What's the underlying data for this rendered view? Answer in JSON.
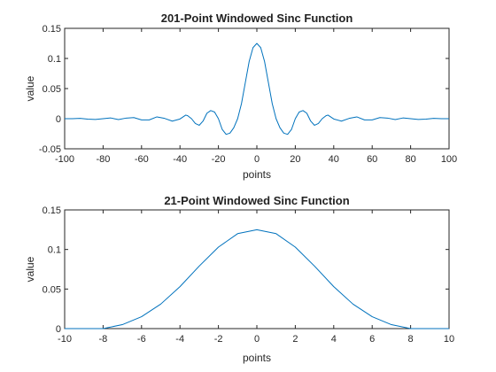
{
  "chart_data": [
    {
      "type": "line",
      "title": "201-Point Windowed Sinc Function",
      "xlabel": "points",
      "ylabel": "value",
      "xlim": [
        -100,
        100
      ],
      "ylim": [
        -0.05,
        0.15
      ],
      "xticks": [
        -100,
        -80,
        -60,
        -40,
        -20,
        0,
        20,
        40,
        60,
        80,
        100
      ],
      "yticks": [
        -0.05,
        0,
        0.05,
        0.1,
        0.15
      ],
      "xtick_labels": [
        "-100",
        "-80",
        "-60",
        "-40",
        "-20",
        "0",
        "20",
        "40",
        "60",
        "80",
        "100"
      ],
      "ytick_labels": [
        "-0.05",
        "0",
        "0.05",
        "0.1",
        "0.15"
      ],
      "grid": false,
      "line_color": "#0072BD",
      "series": [
        {
          "x": [
            -100,
            -96,
            -92,
            -88,
            -84,
            -80,
            -76,
            -72,
            -68,
            -64,
            -60,
            -56,
            -52,
            -48,
            -44,
            -40,
            -37,
            -36,
            -34,
            -32,
            -30,
            -28,
            -26,
            -24,
            -22,
            -20,
            -18,
            -16,
            -14,
            -12,
            -10,
            -8,
            -6,
            -4,
            -2,
            0,
            2,
            4,
            6,
            8,
            10,
            12,
            14,
            16,
            18,
            20,
            22,
            24,
            26,
            28,
            30,
            32,
            34,
            36,
            37,
            40,
            44,
            48,
            52,
            56,
            60,
            64,
            68,
            72,
            76,
            80,
            84,
            88,
            92,
            96,
            100
          ],
          "y": [
            0.0,
            0.0,
            0.0005,
            -0.0008,
            -0.0012,
            0.0,
            0.0012,
            -0.0015,
            0.001,
            0.0018,
            -0.002,
            -0.002,
            0.003,
            0.0005,
            -0.004,
            -0.0005,
            0.006,
            0.005,
            0.0,
            -0.008,
            -0.011,
            -0.004,
            0.009,
            0.0135,
            0.011,
            0.0,
            -0.018,
            -0.026,
            -0.024,
            -0.015,
            0.0,
            0.025,
            0.06,
            0.095,
            0.118,
            0.125,
            0.118,
            0.095,
            0.06,
            0.025,
            0.0,
            -0.015,
            -0.024,
            -0.026,
            -0.018,
            0.0,
            0.011,
            0.0135,
            0.009,
            -0.004,
            -0.011,
            -0.008,
            0.0,
            0.005,
            0.006,
            -0.0005,
            -0.004,
            0.0005,
            0.003,
            -0.002,
            -0.002,
            0.0018,
            0.001,
            -0.0015,
            0.0012,
            0.0,
            -0.0012,
            -0.0008,
            0.0005,
            0.0,
            0.0
          ]
        }
      ]
    },
    {
      "type": "line",
      "title": "21-Point Windowed Sinc Function",
      "xlabel": "points",
      "ylabel": "value",
      "xlim": [
        -10,
        10
      ],
      "ylim": [
        0,
        0.15
      ],
      "xticks": [
        -10,
        -8,
        -6,
        -4,
        -2,
        0,
        2,
        4,
        6,
        8,
        10
      ],
      "yticks": [
        0,
        0.05,
        0.1,
        0.15
      ],
      "xtick_labels": [
        "-10",
        "-8",
        "-6",
        "-4",
        "-2",
        "0",
        "2",
        "4",
        "6",
        "8",
        "10"
      ],
      "ytick_labels": [
        "0",
        "0.05",
        "0.1",
        "0.15"
      ],
      "grid": false,
      "line_color": "#0072BD",
      "series": [
        {
          "x": [
            -10,
            -9,
            -8,
            -7,
            -6,
            -5,
            -4,
            -3,
            -2,
            -1,
            0,
            1,
            2,
            3,
            4,
            5,
            6,
            7,
            8,
            9,
            10
          ],
          "y": [
            0.0,
            -0.001,
            0.0,
            0.005,
            0.015,
            0.031,
            0.053,
            0.079,
            0.103,
            0.12,
            0.125,
            0.12,
            0.103,
            0.079,
            0.053,
            0.031,
            0.015,
            0.005,
            0.0,
            -0.001,
            0.0
          ]
        }
      ]
    }
  ]
}
